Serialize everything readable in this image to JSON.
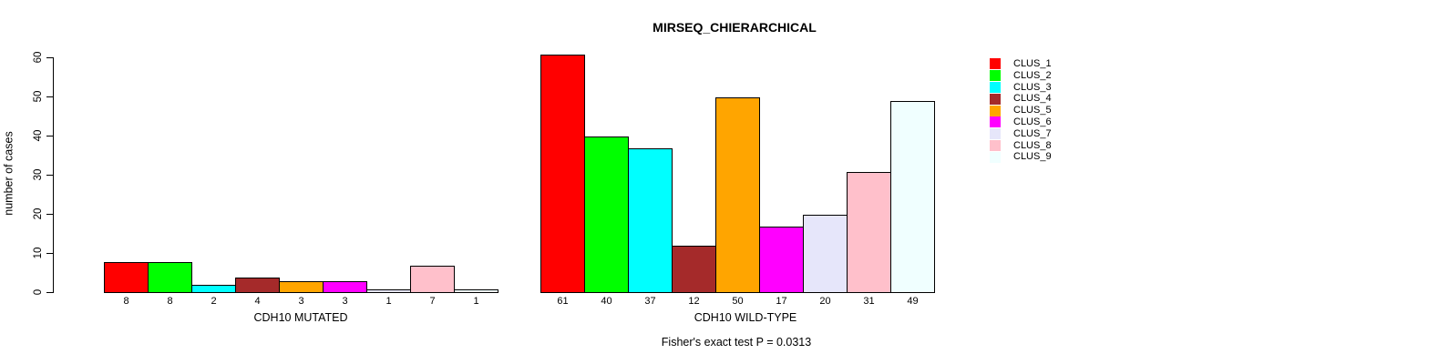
{
  "chart_data": {
    "type": "bar",
    "title": "MIRSEQ_CHIERARCHICAL",
    "ylabel": "number of cases",
    "footnote": "Fisher's exact test P = 0.0313",
    "ylim": [
      0,
      60
    ],
    "yticks": [
      0,
      10,
      20,
      30,
      40,
      50,
      60
    ],
    "grid": false,
    "legend_position": "right",
    "categories": [
      "CLUS_1",
      "CLUS_2",
      "CLUS_3",
      "CLUS_4",
      "CLUS_5",
      "CLUS_6",
      "CLUS_7",
      "CLUS_8",
      "CLUS_9"
    ],
    "colors": [
      "#FF0000",
      "#00FF00",
      "#00FFFF",
      "#A52A2A",
      "#FFA500",
      "#FF00FF",
      "#E6E6FA",
      "#FFC0CB",
      "#F0FFFF"
    ],
    "bar_border_color": "#000000",
    "series": [
      {
        "name": "CDH10 MUTATED",
        "values": [
          8,
          8,
          2,
          4,
          3,
          3,
          1,
          7,
          1
        ]
      },
      {
        "name": "CDH10 WILD-TYPE",
        "values": [
          61,
          40,
          37,
          12,
          50,
          17,
          20,
          31,
          49
        ]
      }
    ]
  }
}
